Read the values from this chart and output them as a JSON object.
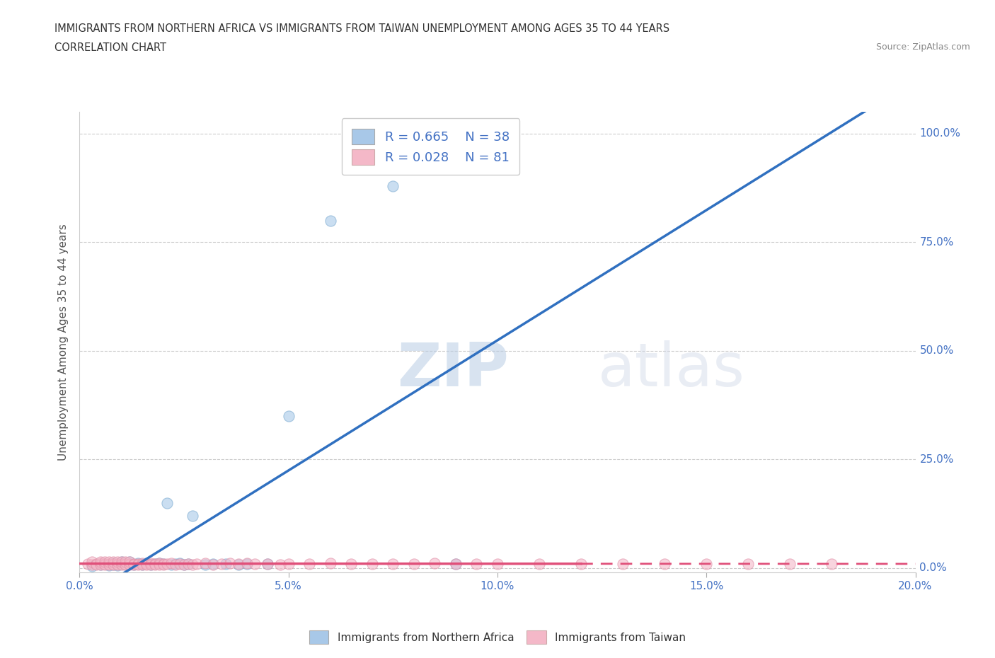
{
  "title_line1": "IMMIGRANTS FROM NORTHERN AFRICA VS IMMIGRANTS FROM TAIWAN UNEMPLOYMENT AMONG AGES 35 TO 44 YEARS",
  "title_line2": "CORRELATION CHART",
  "source_text": "Source: ZipAtlas.com",
  "ylabel": "Unemployment Among Ages 35 to 44 years",
  "xlim": [
    0.0,
    0.2
  ],
  "ylim": [
    -0.01,
    1.05
  ],
  "xtick_labels": [
    "0.0%",
    "5.0%",
    "10.0%",
    "15.0%",
    "20.0%"
  ],
  "xtick_values": [
    0.0,
    0.05,
    0.1,
    0.15,
    0.2
  ],
  "ytick_labels": [
    "0.0%",
    "25.0%",
    "50.0%",
    "75.0%",
    "100.0%"
  ],
  "ytick_values": [
    0.0,
    0.25,
    0.5,
    0.75,
    1.0
  ],
  "blue_R": 0.665,
  "blue_N": 38,
  "pink_R": 0.028,
  "pink_N": 81,
  "blue_color": "#a8c8e8",
  "pink_color": "#f4b8c8",
  "blue_line_color": "#3070c0",
  "pink_line_color": "#e0507a",
  "pink_line_solid_end": 0.12,
  "watermark_zip": "ZIP",
  "watermark_atlas": "atlas",
  "legend_label_blue": "Immigrants from Northern Africa",
  "legend_label_pink": "Immigrants from Taiwan",
  "background_color": "#ffffff",
  "grid_color": "#cccccc",
  "blue_scatter_x": [
    0.003,
    0.005,
    0.006,
    0.007,
    0.008,
    0.008,
    0.009,
    0.01,
    0.01,
    0.011,
    0.012,
    0.012,
    0.013,
    0.014,
    0.015,
    0.015,
    0.016,
    0.017,
    0.018,
    0.019,
    0.02,
    0.021,
    0.022,
    0.023,
    0.024,
    0.025,
    0.026,
    0.027,
    0.03,
    0.032,
    0.035,
    0.038,
    0.04,
    0.045,
    0.05,
    0.06,
    0.075,
    0.09
  ],
  "blue_scatter_y": [
    0.005,
    0.008,
    0.01,
    0.006,
    0.008,
    0.012,
    0.006,
    0.01,
    0.015,
    0.008,
    0.01,
    0.015,
    0.008,
    0.012,
    0.01,
    0.008,
    0.012,
    0.008,
    0.01,
    0.012,
    0.01,
    0.15,
    0.008,
    0.01,
    0.012,
    0.008,
    0.01,
    0.12,
    0.008,
    0.01,
    0.01,
    0.008,
    0.01,
    0.01,
    0.35,
    0.8,
    0.88,
    0.01
  ],
  "pink_scatter_x": [
    0.002,
    0.003,
    0.003,
    0.004,
    0.004,
    0.005,
    0.005,
    0.005,
    0.006,
    0.006,
    0.006,
    0.007,
    0.007,
    0.007,
    0.008,
    0.008,
    0.008,
    0.009,
    0.009,
    0.009,
    0.01,
    0.01,
    0.01,
    0.011,
    0.011,
    0.011,
    0.012,
    0.012,
    0.012,
    0.013,
    0.013,
    0.014,
    0.014,
    0.015,
    0.015,
    0.016,
    0.016,
    0.017,
    0.017,
    0.018,
    0.018,
    0.019,
    0.019,
    0.02,
    0.02,
    0.021,
    0.022,
    0.023,
    0.024,
    0.025,
    0.026,
    0.027,
    0.028,
    0.03,
    0.032,
    0.034,
    0.036,
    0.038,
    0.04,
    0.042,
    0.045,
    0.048,
    0.05,
    0.055,
    0.06,
    0.065,
    0.07,
    0.075,
    0.08,
    0.085,
    0.09,
    0.095,
    0.1,
    0.11,
    0.12,
    0.13,
    0.14,
    0.15,
    0.16,
    0.17,
    0.18
  ],
  "pink_scatter_y": [
    0.01,
    0.008,
    0.015,
    0.01,
    0.008,
    0.012,
    0.008,
    0.015,
    0.01,
    0.008,
    0.015,
    0.01,
    0.008,
    0.015,
    0.01,
    0.008,
    0.015,
    0.01,
    0.008,
    0.015,
    0.01,
    0.008,
    0.015,
    0.01,
    0.008,
    0.015,
    0.01,
    0.008,
    0.015,
    0.01,
    0.008,
    0.01,
    0.008,
    0.012,
    0.008,
    0.01,
    0.008,
    0.012,
    0.008,
    0.01,
    0.008,
    0.012,
    0.008,
    0.01,
    0.008,
    0.01,
    0.012,
    0.008,
    0.01,
    0.008,
    0.01,
    0.008,
    0.01,
    0.012,
    0.008,
    0.01,
    0.012,
    0.01,
    0.012,
    0.01,
    0.01,
    0.008,
    0.01,
    0.01,
    0.012,
    0.01,
    0.01,
    0.01,
    0.01,
    0.012,
    0.01,
    0.01,
    0.01,
    0.01,
    0.01,
    0.01,
    0.01,
    0.01,
    0.01,
    0.01,
    0.01
  ]
}
